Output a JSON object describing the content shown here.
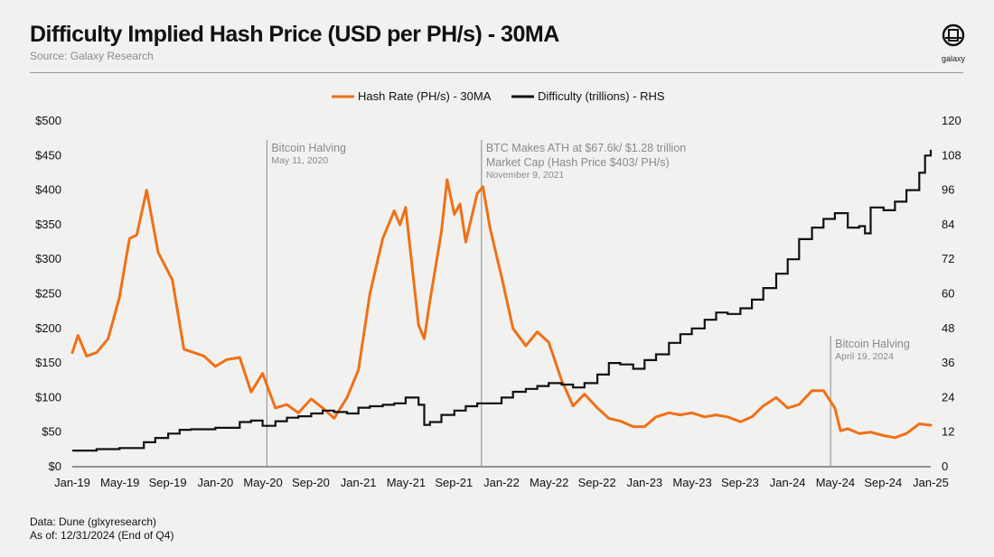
{
  "header": {
    "title": "Difficulty Implied Hash Price (USD per PH/s) - 30MA",
    "source": "Source: Galaxy Research",
    "logo": "galaxy"
  },
  "footer": {
    "data_note": "Data: Dune (glxyresearch)",
    "asof_note": "As of: 12/31/2024 (End of Q4)"
  },
  "colors": {
    "hash": "#f07016",
    "difficulty": "#111111",
    "annotation": "#8a8a8a",
    "background": "#f1f1ef"
  },
  "chart_data": {
    "type": "line",
    "title": "Difficulty Implied Hash Price (USD per PH/s) - 30MA",
    "x_range": [
      2019.0,
      2025.0
    ],
    "x_ticks": [
      {
        "label": "Jan-19",
        "x": 2019.0
      },
      {
        "label": "May-19",
        "x": 2019.333
      },
      {
        "label": "Sep-19",
        "x": 2019.667
      },
      {
        "label": "Jan-20",
        "x": 2020.0
      },
      {
        "label": "May-20",
        "x": 2020.333
      },
      {
        "label": "Sep-20",
        "x": 2020.667
      },
      {
        "label": "Jan-21",
        "x": 2021.0
      },
      {
        "label": "May-21",
        "x": 2021.333
      },
      {
        "label": "Sep-21",
        "x": 2021.667
      },
      {
        "label": "Jan-22",
        "x": 2022.0
      },
      {
        "label": "May-22",
        "x": 2022.333
      },
      {
        "label": "Sep-22",
        "x": 2022.667
      },
      {
        "label": "Jan-23",
        "x": 2023.0
      },
      {
        "label": "May-23",
        "x": 2023.333
      },
      {
        "label": "Sep-23",
        "x": 2023.667
      },
      {
        "label": "Jan-24",
        "x": 2024.0
      },
      {
        "label": "May-24",
        "x": 2024.333
      },
      {
        "label": "Sep-24",
        "x": 2024.667
      },
      {
        "label": "Jan-25",
        "x": 2025.0
      }
    ],
    "y_left": {
      "range": [
        0,
        500
      ],
      "ticks": [
        {
          "label": "$0",
          "v": 0
        },
        {
          "label": "$50",
          "v": 50
        },
        {
          "label": "$100",
          "v": 100
        },
        {
          "label": "$150",
          "v": 150
        },
        {
          "label": "$200",
          "v": 200
        },
        {
          "label": "$250",
          "v": 250
        },
        {
          "label": "$300",
          "v": 300
        },
        {
          "label": "$350",
          "v": 350
        },
        {
          "label": "$400",
          "v": 400
        },
        {
          "label": "$450",
          "v": 450
        },
        {
          "label": "$500",
          "v": 500
        }
      ]
    },
    "y_right": {
      "range": [
        0,
        120
      ],
      "ticks": [
        {
          "label": "0",
          "v": 0
        },
        {
          "label": "12",
          "v": 12
        },
        {
          "label": "24",
          "v": 24
        },
        {
          "label": "36",
          "v": 36
        },
        {
          "label": "48",
          "v": 48
        },
        {
          "label": "60",
          "v": 60
        },
        {
          "label": "72",
          "v": 72
        },
        {
          "label": "84",
          "v": 84
        },
        {
          "label": "96",
          "v": 96
        },
        {
          "label": "108",
          "v": 108
        },
        {
          "label": "120",
          "v": 120
        }
      ]
    },
    "legend": [
      "Hash Rate (PH/s) - 30MA",
      "Difficulty (trillions) - RHS"
    ],
    "series": [
      {
        "name": "Hash Rate (PH/s) - 30MA",
        "axis": "left",
        "points": [
          [
            2019.0,
            165
          ],
          [
            2019.04,
            190
          ],
          [
            2019.1,
            160
          ],
          [
            2019.17,
            165
          ],
          [
            2019.25,
            185
          ],
          [
            2019.33,
            245
          ],
          [
            2019.4,
            330
          ],
          [
            2019.45,
            335
          ],
          [
            2019.52,
            400
          ],
          [
            2019.6,
            310
          ],
          [
            2019.7,
            270
          ],
          [
            2019.78,
            170
          ],
          [
            2019.85,
            165
          ],
          [
            2019.92,
            160
          ],
          [
            2020.0,
            145
          ],
          [
            2020.08,
            155
          ],
          [
            2020.17,
            158
          ],
          [
            2020.25,
            108
          ],
          [
            2020.33,
            135
          ],
          [
            2020.42,
            85
          ],
          [
            2020.5,
            90
          ],
          [
            2020.58,
            78
          ],
          [
            2020.67,
            98
          ],
          [
            2020.75,
            85
          ],
          [
            2020.83,
            70
          ],
          [
            2020.92,
            100
          ],
          [
            2021.0,
            140
          ],
          [
            2021.08,
            250
          ],
          [
            2021.17,
            330
          ],
          [
            2021.25,
            370
          ],
          [
            2021.29,
            350
          ],
          [
            2021.33,
            375
          ],
          [
            2021.42,
            205
          ],
          [
            2021.46,
            185
          ],
          [
            2021.5,
            240
          ],
          [
            2021.58,
            340
          ],
          [
            2021.62,
            415
          ],
          [
            2021.67,
            365
          ],
          [
            2021.71,
            380
          ],
          [
            2021.75,
            325
          ],
          [
            2021.83,
            395
          ],
          [
            2021.87,
            405
          ],
          [
            2021.92,
            345
          ],
          [
            2022.0,
            275
          ],
          [
            2022.08,
            200
          ],
          [
            2022.17,
            175
          ],
          [
            2022.25,
            195
          ],
          [
            2022.33,
            180
          ],
          [
            2022.42,
            125
          ],
          [
            2022.5,
            88
          ],
          [
            2022.58,
            105
          ],
          [
            2022.67,
            85
          ],
          [
            2022.75,
            70
          ],
          [
            2022.83,
            66
          ],
          [
            2022.92,
            58
          ],
          [
            2023.0,
            58
          ],
          [
            2023.08,
            72
          ],
          [
            2023.17,
            78
          ],
          [
            2023.25,
            75
          ],
          [
            2023.33,
            78
          ],
          [
            2023.42,
            72
          ],
          [
            2023.5,
            75
          ],
          [
            2023.58,
            72
          ],
          [
            2023.67,
            65
          ],
          [
            2023.75,
            72
          ],
          [
            2023.83,
            88
          ],
          [
            2023.92,
            100
          ],
          [
            2024.0,
            85
          ],
          [
            2024.08,
            90
          ],
          [
            2024.17,
            110
          ],
          [
            2024.25,
            110
          ],
          [
            2024.33,
            85
          ],
          [
            2024.37,
            52
          ],
          [
            2024.42,
            55
          ],
          [
            2024.5,
            48
          ],
          [
            2024.58,
            50
          ],
          [
            2024.67,
            45
          ],
          [
            2024.75,
            42
          ],
          [
            2024.83,
            48
          ],
          [
            2024.92,
            62
          ],
          [
            2025.0,
            60
          ]
        ]
      },
      {
        "name": "Difficulty (trillions) - RHS",
        "axis": "right",
        "points": [
          [
            2019.0,
            5.6
          ],
          [
            2019.17,
            6.1
          ],
          [
            2019.33,
            6.5
          ],
          [
            2019.5,
            8.5
          ],
          [
            2019.58,
            10
          ],
          [
            2019.67,
            11.5
          ],
          [
            2019.75,
            12.8
          ],
          [
            2019.83,
            13
          ],
          [
            2020.0,
            13.5
          ],
          [
            2020.17,
            15.5
          ],
          [
            2020.25,
            16
          ],
          [
            2020.33,
            14.2
          ],
          [
            2020.42,
            15.8
          ],
          [
            2020.5,
            17
          ],
          [
            2020.58,
            17.5
          ],
          [
            2020.67,
            18.5
          ],
          [
            2020.75,
            19.5
          ],
          [
            2020.83,
            19
          ],
          [
            2020.92,
            18.5
          ],
          [
            2021.0,
            20.5
          ],
          [
            2021.08,
            21
          ],
          [
            2021.17,
            21.5
          ],
          [
            2021.25,
            22
          ],
          [
            2021.33,
            24
          ],
          [
            2021.42,
            21.5
          ],
          [
            2021.46,
            14.5
          ],
          [
            2021.5,
            15.5
          ],
          [
            2021.58,
            18
          ],
          [
            2021.67,
            19.5
          ],
          [
            2021.75,
            21
          ],
          [
            2021.83,
            22
          ],
          [
            2022.0,
            24
          ],
          [
            2022.08,
            26
          ],
          [
            2022.17,
            27
          ],
          [
            2022.25,
            28
          ],
          [
            2022.33,
            29
          ],
          [
            2022.42,
            28.5
          ],
          [
            2022.5,
            27.5
          ],
          [
            2022.58,
            29
          ],
          [
            2022.67,
            32
          ],
          [
            2022.75,
            36
          ],
          [
            2022.83,
            35.5
          ],
          [
            2022.92,
            34
          ],
          [
            2023.0,
            37
          ],
          [
            2023.08,
            39
          ],
          [
            2023.17,
            43
          ],
          [
            2023.25,
            46
          ],
          [
            2023.33,
            48
          ],
          [
            2023.42,
            51
          ],
          [
            2023.5,
            53.5
          ],
          [
            2023.58,
            53
          ],
          [
            2023.67,
            55
          ],
          [
            2023.75,
            58
          ],
          [
            2023.83,
            62
          ],
          [
            2023.92,
            67
          ],
          [
            2024.0,
            72
          ],
          [
            2024.08,
            79
          ],
          [
            2024.17,
            83
          ],
          [
            2024.25,
            86
          ],
          [
            2024.33,
            88
          ],
          [
            2024.42,
            83
          ],
          [
            2024.5,
            83.5
          ],
          [
            2024.54,
            81
          ],
          [
            2024.58,
            90
          ],
          [
            2024.67,
            89
          ],
          [
            2024.75,
            92
          ],
          [
            2024.83,
            96
          ],
          [
            2024.92,
            102
          ],
          [
            2024.96,
            108
          ],
          [
            2025.0,
            110
          ]
        ]
      }
    ],
    "annotations": [
      {
        "x": 2020.36,
        "lines": [
          "Bitcoin Halving"
        ],
        "date": "May 11, 2020"
      },
      {
        "x": 2021.86,
        "lines": [
          "BTC Makes ATH at $67.6k/ $1.28 trillion",
          "Market Cap (Hash Price $403/ PH/s)"
        ],
        "date": "November 9, 2021"
      },
      {
        "x": 2024.3,
        "lines": [
          "Bitcoin Halving"
        ],
        "date": "April 19, 2024"
      }
    ]
  }
}
